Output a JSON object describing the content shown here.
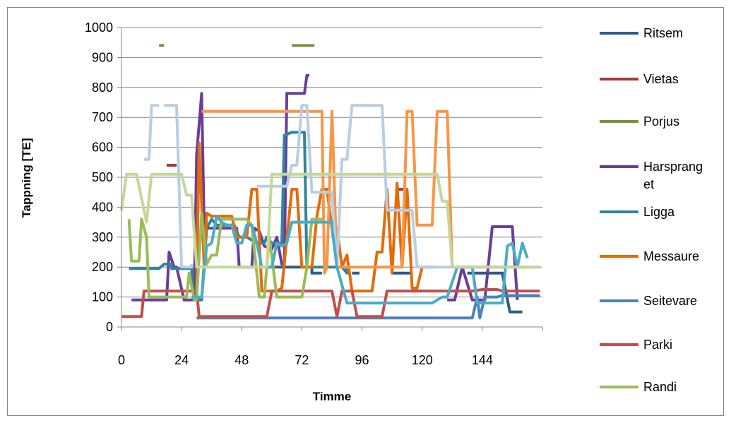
{
  "chart_data": {
    "type": "line",
    "xlabel": "Timme",
    "ylabel": "Tappning [TE]",
    "xlim": [
      0,
      168
    ],
    "ylim": [
      0,
      1000
    ],
    "x_ticks": [
      "0",
      "24",
      "48",
      "72",
      "96",
      "120",
      "144"
    ],
    "y_ticks": [
      "0",
      "100",
      "200",
      "300",
      "400",
      "500",
      "600",
      "700",
      "800",
      "900",
      "1000"
    ],
    "grid": "horizontal",
    "legend_position": "right",
    "series": [
      {
        "name": "Ritsem",
        "color": "#2E5C8A",
        "points": [
          [
            58,
            200
          ],
          [
            72,
            200
          ],
          [
            76,
            200
          ],
          [
            76,
            180
          ],
          [
            80,
            180
          ],
          [
            null,
            null
          ],
          [
            92,
            180
          ],
          [
            95,
            180
          ],
          [
            null,
            null
          ],
          [
            108,
            180
          ],
          [
            116,
            180
          ],
          [
            null,
            null
          ],
          [
            138,
            180
          ],
          [
            150,
            180
          ],
          [
            152,
            180
          ],
          [
            155,
            50
          ],
          [
            160,
            50
          ]
        ]
      },
      {
        "name": "Vietas",
        "color": "#A33B3B",
        "points": [
          [
            18,
            540
          ],
          [
            22,
            540
          ],
          [
            null,
            null
          ],
          [
            110,
            460
          ],
          [
            113,
            460
          ]
        ]
      },
      {
        "name": "Porjus",
        "color": "#77933C",
        "points": [
          [
            15,
            940
          ],
          [
            17,
            940
          ],
          [
            null,
            null
          ],
          [
            68,
            940
          ],
          [
            77,
            940
          ]
        ]
      },
      {
        "name": "Harsprang\net",
        "color": "#6A3D9A",
        "points": [
          [
            4,
            90
          ],
          [
            18,
            90
          ],
          [
            19,
            250
          ],
          [
            21,
            200
          ],
          [
            22,
            200
          ],
          [
            25,
            90
          ],
          [
            29,
            90
          ],
          [
            30,
            575
          ],
          [
            32,
            780
          ],
          [
            33,
            330
          ],
          [
            36,
            330
          ],
          [
            40,
            330
          ],
          [
            46,
            330
          ],
          [
            47,
            200
          ],
          [
            52,
            200
          ],
          [
            53,
            330
          ],
          [
            55,
            320
          ],
          [
            57,
            270
          ],
          [
            60,
            260
          ],
          [
            62,
            300
          ],
          [
            64,
            210
          ],
          [
            65,
            210
          ],
          [
            66,
            780
          ],
          [
            73,
            780
          ],
          [
            74,
            840
          ],
          [
            75,
            840
          ],
          [
            null,
            null
          ],
          [
            116,
            120
          ],
          [
            120,
            120
          ],
          [
            null,
            null
          ],
          [
            130,
            90
          ],
          [
            133,
            90
          ],
          [
            136,
            200
          ],
          [
            140,
            90
          ],
          [
            145,
            90
          ],
          [
            148,
            335
          ],
          [
            156,
            335
          ],
          [
            158,
            90
          ]
        ]
      },
      {
        "name": "Ligga",
        "color": "#31849B",
        "points": [
          [
            3,
            195
          ],
          [
            15,
            195
          ],
          [
            17,
            210
          ],
          [
            20,
            210
          ],
          [
            20,
            195
          ],
          [
            28,
            195
          ],
          [
            29,
            90
          ],
          [
            32,
            90
          ],
          [
            34,
            330
          ],
          [
            36,
            360
          ],
          [
            38,
            340
          ],
          [
            41,
            340
          ],
          [
            45,
            340
          ],
          [
            47,
            300
          ],
          [
            50,
            300
          ],
          [
            54,
            280
          ],
          [
            57,
            280
          ],
          [
            58,
            300
          ],
          [
            60,
            280
          ],
          [
            62,
            280
          ],
          [
            64,
            280
          ],
          [
            65,
            640
          ],
          [
            68,
            650
          ],
          [
            73,
            650
          ],
          [
            74,
            200
          ],
          [
            80,
            200
          ],
          [
            88,
            200
          ],
          [
            90,
            180
          ],
          [
            90,
            200
          ]
        ]
      },
      {
        "name": "Messaure",
        "color": "#E36C09",
        "points": [
          [
            26,
            120
          ],
          [
            30,
            120
          ],
          [
            31,
            615
          ],
          [
            33,
            200
          ],
          [
            34,
            380
          ],
          [
            36,
            370
          ],
          [
            40,
            370
          ],
          [
            44,
            370
          ],
          [
            46,
            300
          ],
          [
            50,
            300
          ],
          [
            52,
            460
          ],
          [
            54,
            460
          ],
          [
            56,
            120
          ],
          [
            62,
            120
          ],
          [
            64,
            130
          ],
          [
            68,
            460
          ],
          [
            70,
            460
          ],
          [
            72,
            200
          ],
          [
            76,
            200
          ],
          [
            78,
            370
          ],
          [
            80,
            460
          ],
          [
            82,
            460
          ],
          [
            84,
            330
          ],
          [
            86,
            330
          ],
          [
            88,
            200
          ],
          [
            90,
            240
          ],
          [
            92,
            120
          ],
          [
            98,
            120
          ],
          [
            100,
            120
          ],
          [
            102,
            250
          ],
          [
            104,
            250
          ],
          [
            106,
            460
          ],
          [
            108,
            180
          ],
          [
            110,
            480
          ],
          [
            112,
            200
          ],
          [
            114,
            460
          ],
          [
            116,
            130
          ],
          [
            118,
            130
          ],
          [
            120,
            200
          ],
          [
            122,
            200
          ],
          [
            124,
            200
          ],
          [
            125,
            200
          ]
        ]
      },
      {
        "name": "Seitevare",
        "color": "#4F81BD",
        "points": [
          [
            30,
            30
          ],
          [
            140,
            30
          ],
          [
            142,
            100
          ],
          [
            143,
            30
          ],
          [
            145,
            100
          ],
          [
            150,
            100
          ],
          [
            152,
            105
          ],
          [
            167,
            105
          ]
        ]
      },
      {
        "name": "Parki",
        "color": "#C0504D",
        "points": [
          [
            0,
            35
          ],
          [
            8,
            35
          ],
          [
            9,
            120
          ],
          [
            30,
            120
          ],
          [
            31,
            35
          ],
          [
            58,
            35
          ],
          [
            60,
            120
          ],
          [
            84,
            120
          ],
          [
            86,
            35
          ],
          [
            88,
            120
          ],
          [
            92,
            120
          ],
          [
            94,
            35
          ],
          [
            104,
            35
          ],
          [
            106,
            120
          ],
          [
            140,
            120
          ],
          [
            144,
            125
          ],
          [
            150,
            125
          ],
          [
            152,
            120
          ],
          [
            167,
            120
          ]
        ]
      },
      {
        "name": "Randi",
        "color": "#9BBB59",
        "points": [
          [
            3,
            360
          ],
          [
            4,
            220
          ],
          [
            6,
            220
          ],
          [
            7,
            220
          ],
          [
            8,
            360
          ],
          [
            10,
            300
          ],
          [
            11,
            100
          ],
          [
            14,
            100
          ],
          [
            22,
            100
          ],
          [
            26,
            100
          ],
          [
            27,
            180
          ],
          [
            29,
            90
          ],
          [
            30,
            90
          ],
          [
            32,
            380
          ],
          [
            34,
            210
          ],
          [
            36,
            240
          ],
          [
            38,
            240
          ],
          [
            40,
            360
          ],
          [
            42,
            360
          ],
          [
            46,
            360
          ],
          [
            50,
            360
          ],
          [
            52,
            340
          ],
          [
            55,
            100
          ],
          [
            57,
            100
          ],
          [
            59,
            300
          ],
          [
            62,
            100
          ],
          [
            70,
            100
          ],
          [
            72,
            100
          ],
          [
            74,
            200
          ],
          [
            76,
            360
          ],
          [
            80,
            360
          ],
          [
            81,
            360
          ]
        ]
      },
      {
        "name": "",
        "color": "#F79646",
        "points": [
          [
            32,
            720
          ],
          [
            70,
            720
          ],
          [
            80,
            720
          ],
          [
            81,
            180
          ],
          [
            82,
            200
          ],
          [
            84,
            720
          ],
          [
            86,
            200
          ],
          [
            112,
            200
          ],
          [
            114,
            720
          ],
          [
            116,
            720
          ],
          [
            118,
            340
          ],
          [
            124,
            340
          ],
          [
            126,
            720
          ],
          [
            130,
            720
          ],
          [
            132,
            200
          ],
          [
            167,
            200
          ]
        ]
      },
      {
        "name": "",
        "color": "#B9CDE5",
        "points": [
          [
            9,
            560
          ],
          [
            11,
            560
          ],
          [
            12,
            740
          ],
          [
            15,
            740
          ],
          [
            null,
            null
          ],
          [
            17,
            740
          ],
          [
            22,
            740
          ],
          [
            24,
            200
          ],
          [
            28,
            200
          ],
          [
            28,
            210
          ],
          [
            null,
            null
          ],
          [
            54,
            470
          ],
          [
            60,
            470
          ],
          [
            66,
            470
          ],
          [
            68,
            540
          ],
          [
            70,
            540
          ],
          [
            72,
            740
          ],
          [
            74,
            740
          ],
          [
            76,
            450
          ],
          [
            78,
            450
          ],
          [
            84,
            450
          ],
          [
            86,
            200
          ],
          [
            88,
            560
          ],
          [
            90,
            560
          ],
          [
            92,
            740
          ],
          [
            98,
            740
          ],
          [
            104,
            740
          ],
          [
            106,
            390
          ],
          [
            112,
            390
          ],
          [
            116,
            390
          ],
          [
            118,
            200
          ],
          [
            124,
            200
          ],
          [
            167,
            200
          ]
        ]
      },
      {
        "name": "",
        "color": "#4BACC6",
        "points": [
          [
            28,
            100
          ],
          [
            32,
            100
          ],
          [
            34,
            270
          ],
          [
            36,
            280
          ],
          [
            38,
            370
          ],
          [
            40,
            350
          ],
          [
            42,
            340
          ],
          [
            44,
            340
          ],
          [
            46,
            280
          ],
          [
            48,
            280
          ],
          [
            50,
            340
          ],
          [
            52,
            340
          ],
          [
            54,
            280
          ],
          [
            56,
            200
          ],
          [
            60,
            200
          ],
          [
            62,
            280
          ],
          [
            64,
            270
          ],
          [
            66,
            280
          ],
          [
            68,
            350
          ],
          [
            74,
            350
          ],
          [
            82,
            350
          ],
          [
            84,
            350
          ],
          [
            84,
            330
          ],
          [
            86,
            200
          ],
          [
            90,
            80
          ],
          [
            96,
            80
          ],
          [
            104,
            80
          ],
          [
            112,
            80
          ],
          [
            124,
            80
          ],
          [
            128,
            100
          ],
          [
            130,
            100
          ],
          [
            134,
            200
          ],
          [
            140,
            200
          ],
          [
            142,
            80
          ],
          [
            150,
            80
          ],
          [
            152,
            80
          ],
          [
            154,
            270
          ],
          [
            156,
            280
          ],
          [
            158,
            200
          ],
          [
            160,
            280
          ],
          [
            162,
            230
          ]
        ]
      },
      {
        "name": "",
        "color": "#C4D79B",
        "points": [
          [
            0,
            390
          ],
          [
            2,
            510
          ],
          [
            6,
            510
          ],
          [
            8,
            430
          ],
          [
            10,
            350
          ],
          [
            12,
            510
          ],
          [
            24,
            510
          ],
          [
            26,
            440
          ],
          [
            28,
            440
          ],
          [
            30,
            200
          ],
          [
            48,
            200
          ],
          [
            54,
            200
          ],
          [
            58,
            200
          ],
          [
            60,
            510
          ],
          [
            80,
            510
          ],
          [
            100,
            510
          ],
          [
            120,
            510
          ],
          [
            126,
            510
          ],
          [
            128,
            420
          ],
          [
            130,
            420
          ],
          [
            132,
            200
          ],
          [
            167,
            200
          ]
        ]
      }
    ]
  }
}
